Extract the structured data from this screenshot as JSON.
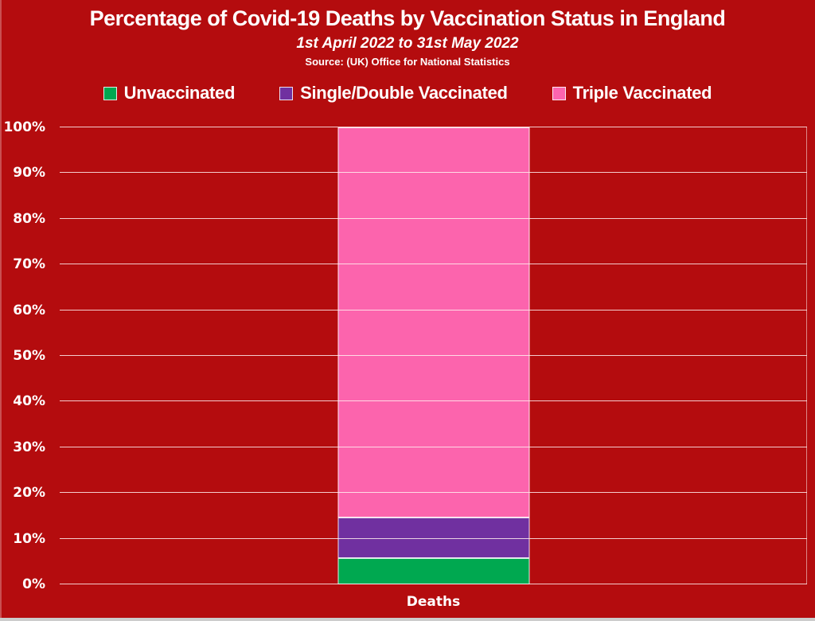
{
  "window": {
    "background_color": "#b40c0e",
    "bottom_edge_color": "#cccccc"
  },
  "header": {
    "title": "Percentage of Covid-19 Deaths by Vaccination Status in England",
    "subtitle": "1st April 2022 to 31st May 2022",
    "source": "Source: (UK) Office for National Statistics"
  },
  "legend": {
    "position": "top",
    "items": [
      {
        "label": "Unvaccinated",
        "color": "#00a850"
      },
      {
        "label": "Single/Double Vaccinated",
        "color": "#7030a0"
      },
      {
        "label": "Triple Vaccinated",
        "color": "#fc64ad"
      }
    ]
  },
  "chart_data": {
    "type": "bar",
    "stacked": true,
    "categories": [
      "Deaths"
    ],
    "series": [
      {
        "name": "Unvaccinated",
        "color": "#00a850",
        "values": [
          5.8
        ]
      },
      {
        "name": "Single/Double Vaccinated",
        "color": "#7030a0",
        "values": [
          8.8
        ]
      },
      {
        "name": "Triple Vaccinated",
        "color": "#fc64ad",
        "values": [
          85.4
        ]
      }
    ],
    "title": "Percentage of Covid-19 Deaths by Vaccination Status in England",
    "xlabel": "Deaths",
    "ylabel": "",
    "ylim": [
      0,
      100
    ],
    "yticks": [
      {
        "value": 0,
        "label": "0%"
      },
      {
        "value": 10,
        "label": "10%"
      },
      {
        "value": 20,
        "label": "20%"
      },
      {
        "value": 30,
        "label": "30%"
      },
      {
        "value": 40,
        "label": "40%"
      },
      {
        "value": 50,
        "label": "50%"
      },
      {
        "value": 60,
        "label": "60%"
      },
      {
        "value": 70,
        "label": "70%"
      },
      {
        "value": 80,
        "label": "80%"
      },
      {
        "value": 90,
        "label": "90%"
      },
      {
        "value": 100,
        "label": "100%"
      }
    ],
    "grid": "horizontal",
    "gridline_color": "rgba(255,238,238,0.85)",
    "legend_position": "top",
    "text_color": "#ffffff"
  }
}
